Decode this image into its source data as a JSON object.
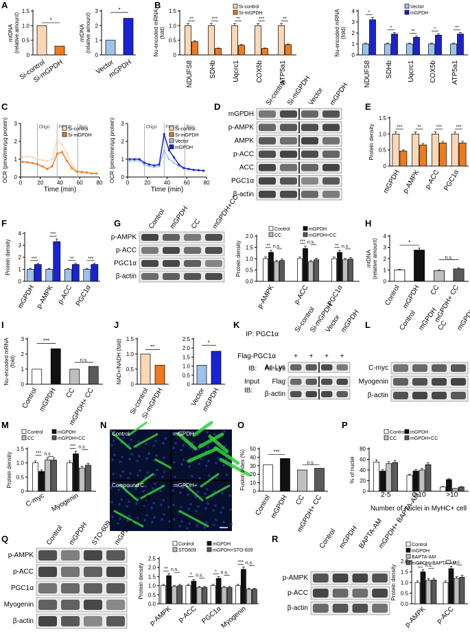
{
  "panels": {
    "A": {
      "letter": "A",
      "left": {
        "ylabel": "mtDNA",
        "ylabel2": "(relative amount)",
        "ticks": [
          "0",
          "0.5",
          "1.0",
          "1.5"
        ],
        "cats": [
          "Si-control",
          "Si-mGPDH"
        ],
        "values": [
          1.0,
          0.3
        ],
        "sig": "*"
      },
      "right": {
        "ylabel": "mtDNA",
        "ylabel2": "(relative amount)",
        "ticks": [
          "0",
          "1",
          "2",
          "3"
        ],
        "cats": [
          "Vector",
          "mGPDH"
        ],
        "values": [
          1.0,
          2.5
        ],
        "sig": "*"
      }
    },
    "B": {
      "letter": "B",
      "left": {
        "ylabel": "Nu-encoded mRNA",
        "ylabel2": "(fold)",
        "ticks": [
          "0",
          "0.5",
          "1.0",
          "1.5"
        ],
        "legend": [
          "Si-control",
          "Si-mGPDH"
        ],
        "cats": [
          "NDUFS8",
          "SDHb",
          "Uqcrc1",
          "COX5b",
          "ATP5a1"
        ],
        "series": [
          [
            1.0,
            1.0,
            1.0,
            1.0,
            1.0
          ],
          [
            0.45,
            0.22,
            0.33,
            0.22,
            0.35
          ]
        ],
        "sig": [
          "**",
          "***",
          "**",
          "***",
          "**"
        ]
      },
      "right": {
        "ylabel": "Nu-encoded mRNA",
        "ylabel2": "(fold)",
        "ticks": [
          "0",
          "1",
          "2",
          "3",
          "4"
        ],
        "legend": [
          "Vector",
          "mGPDH"
        ],
        "cats": [
          "NDUFS8",
          "SDHb",
          "Uqcrc1",
          "COX5b",
          "ATP5a1"
        ],
        "series": [
          [
            1.0,
            1.0,
            1.0,
            1.0,
            1.0
          ],
          [
            3.2,
            1.9,
            1.6,
            1.8,
            1.9
          ]
        ],
        "sig": [
          "*",
          "*",
          "**",
          "*",
          "**"
        ]
      }
    },
    "C": {
      "letter": "C",
      "ylabel": "OCR (pmol/min/μg protein)",
      "xlabel": "Time (min)",
      "xticks": [
        "0",
        "20",
        "40",
        "60",
        "80"
      ],
      "yticks": [
        "0",
        "1",
        "2",
        "3"
      ],
      "markers": [
        "Oligo",
        "FCCP",
        "Rot"
      ],
      "left": {
        "legend": [
          "Si-control",
          "Si-mGPDH"
        ]
      },
      "right": {
        "legend": [
          "Si-control",
          "Si-mGPDH",
          "Vector",
          "mGPDH"
        ]
      }
    },
    "D": {
      "letter": "D",
      "lanes": [
        "Si-control",
        "Si-mGPDH",
        "Vector",
        "mGPDH"
      ],
      "rows": [
        "mGPDH",
        "p-AMPK",
        "AMPK",
        "p-ACC",
        "ACC",
        "PGC1α",
        "β-actin"
      ]
    },
    "E": {
      "letter": "E",
      "ylabel": "Protein density",
      "ticks": [
        "0",
        "0.5",
        "1.0",
        "1.5"
      ],
      "cats": [
        "mGPDH",
        "p-AMPK",
        "p-ACC",
        "PGC1α"
      ],
      "series": [
        [
          1.0,
          1.0,
          1.0,
          1.0
        ],
        [
          0.47,
          0.66,
          0.72,
          0.72
        ]
      ],
      "sig": [
        "***",
        "**",
        "***",
        "***"
      ]
    },
    "F": {
      "letter": "F",
      "ylabel": "Protein density",
      "ticks": [
        "0",
        "1",
        "2",
        "3",
        "4"
      ],
      "cats": [
        "mGPDH",
        "p-AMPK",
        "p-ACC",
        "PGC1α"
      ],
      "series": [
        [
          1.0,
          1.0,
          1.0,
          1.0
        ],
        [
          1.4,
          3.3,
          1.4,
          1.4
        ]
      ],
      "sig": [
        "***",
        "***",
        "**",
        "***"
      ]
    },
    "G": {
      "letter": "G",
      "lanes": [
        "Control",
        "mGPDH",
        "CC",
        "mGPDH+CC"
      ],
      "rows": [
        "p-AMPK",
        "p-ACC",
        "PGC1α",
        "β-actin"
      ],
      "chart": {
        "ylabel": "Protein density",
        "ticks": [
          "0.0",
          "0.5",
          "1.0",
          "1.5",
          "2.0"
        ],
        "legend": [
          "Control",
          "mGPDH",
          "CC",
          "mGPDH+CC"
        ],
        "cats": [
          "p-AMPK",
          "p-ACC",
          "PGC1α"
        ],
        "series": [
          [
            1.0,
            1.0,
            1.0
          ],
          [
            1.28,
            1.45,
            1.28
          ],
          [
            0.86,
            0.86,
            0.95
          ],
          [
            0.92,
            0.95,
            0.98
          ]
        ],
        "sig": [
          "**",
          "***",
          "**"
        ],
        "ns": "n.s."
      }
    },
    "H": {
      "letter": "H",
      "ylabel": "mtDNA",
      "ylabel2": "(relative amount)",
      "ticks": [
        "0",
        "1",
        "2",
        "3",
        "4"
      ],
      "cats": [
        "Control",
        "mGPDH",
        "CC",
        "mGPDH+ CC"
      ],
      "values": [
        1.0,
        2.75,
        0.95,
        1.1
      ],
      "sig": "*",
      "ns": "n.s."
    },
    "I": {
      "letter": "I",
      "ylabel": "Nu-encoded mRNA",
      "ylabel2": "(fold)",
      "ticks": [
        "0",
        "1",
        "2",
        "3"
      ],
      "cats": [
        "Control",
        "mGPDH",
        "CC",
        "mGPDH+ CC"
      ],
      "values": [
        1.0,
        2.35,
        1.0,
        1.18
      ],
      "sig": "***",
      "ns": "n.s."
    },
    "J": {
      "letter": "J",
      "ylabel": "NAD+/NADH (fold)",
      "ticksL": [
        "0",
        "0.5",
        "1.0",
        "1.5"
      ],
      "ticksR": [
        "0",
        "0.5",
        "1.0",
        "1.5",
        "2.0",
        "2.5"
      ],
      "catsL": [
        "Si-control",
        "Si-mGPDH"
      ],
      "valuesL": [
        1.0,
        0.63
      ],
      "sigL": "**",
      "catsR": [
        "Vector",
        "mGPDH"
      ],
      "valuesR": [
        1.05,
        1.82
      ],
      "sigR": "*"
    },
    "K": {
      "letter": "K",
      "ip": "IP: PGC1α",
      "lanes": [
        "Si-control",
        "Si-mGPDH",
        "Vector",
        "mGPDH"
      ],
      "flag_label": "Flag-PGC1α",
      "plus": "+",
      "ib1": "IB:",
      "ib_row": "Ac-Lys",
      "input": "Input",
      "ib2": "IB:",
      "rows2": [
        "Flag",
        "β-actin"
      ]
    },
    "L": {
      "letter": "L",
      "lanes": [
        "Control",
        "mGPDH",
        "CC",
        "mGPDH+CC"
      ],
      "rows": [
        "C-myc",
        "Myogenin",
        "β-actin"
      ]
    },
    "M": {
      "letter": "M",
      "ylabel": "Protein density",
      "ticks": [
        "0",
        "0.5",
        "1.0",
        "1.5"
      ],
      "legend": [
        "Control",
        "mGPDH",
        "CC",
        "mGPDH+CC"
      ],
      "cats": [
        "C-myc",
        "Myogenin"
      ],
      "series": [
        [
          1.0,
          1.0
        ],
        [
          0.7,
          1.32
        ],
        [
          1.1,
          0.82
        ],
        [
          1.1,
          0.92
        ]
      ],
      "sig": [
        "***",
        "***"
      ],
      "ns": "n.s."
    },
    "N": {
      "letter": "N",
      "labels": [
        "Control",
        "mGPDH",
        "Compound C",
        "mGPDH+ Compound C"
      ]
    },
    "O": {
      "letter": "O",
      "ylabel": "Fusion index (%)",
      "ticks": [
        "0",
        "10",
        "20",
        "30",
        "40",
        "50"
      ],
      "cats": [
        "Control",
        "mGPDH",
        "CC",
        "mGPDH+ CC"
      ],
      "values": [
        31,
        38.5,
        25,
        27
      ],
      "sig": "***",
      "ns": "n.s."
    },
    "P": {
      "letter": "P",
      "ylabel": "% of nuclei",
      "xlabel": "Number of nuclei in MyHC+ cell",
      "ticks": [
        "0",
        "20",
        "40",
        "60",
        "80"
      ],
      "legend": [
        "Control",
        "mGPDH",
        "CC",
        "mGPDH+CC"
      ],
      "cats": [
        "2-5",
        "6-10",
        ">10"
      ],
      "series": [
        [
          55,
          30,
          8
        ],
        [
          38,
          38,
          22
        ],
        [
          52,
          40,
          5
        ],
        [
          54,
          50,
          8
        ]
      ],
      "sig": [
        "**",
        "n.s.",
        "**"
      ],
      "ns": "n.s."
    },
    "Q": {
      "letter": "Q",
      "lanes": [
        "Control",
        "mGPDH",
        "STO-609",
        "mGPDH+ STO-609"
      ],
      "rows": [
        "p-AMPK",
        "p-ACC",
        "PGC1α",
        "Myogenin",
        "β-actin"
      ],
      "chart": {
        "ylabel": "Protein density",
        "ticks": [
          "0.0",
          "0.5",
          "1.0",
          "1.5",
          "2.0",
          "2.5"
        ],
        "legend": [
          "Control",
          "mGPDH",
          "STO609",
          "mGPDH+STO-609"
        ],
        "cats": [
          "p-AMPK",
          "p-ACC",
          "PGC1α",
          "Myogenin"
        ],
        "series": [
          [
            1.0,
            1.0,
            1.0,
            1.0
          ],
          [
            1.55,
            1.25,
            1.4,
            1.9
          ],
          [
            0.95,
            0.9,
            0.9,
            0.8
          ],
          [
            1.0,
            0.9,
            0.9,
            0.8
          ]
        ],
        "sig": [
          "**",
          "*",
          "*",
          "***"
        ],
        "ns": "n.s."
      }
    },
    "R": {
      "letter": "R",
      "lanes": [
        "Control",
        "mGPDH",
        "BAPTA-AM",
        "mGPDH+ BAPTA-AM"
      ],
      "rows": [
        "p-AMPK",
        "p-ACC",
        "β-actin"
      ],
      "chart": {
        "ylabel": "Protein density",
        "ticks": [
          "0.0",
          "0.5",
          "1.0",
          "1.5",
          "2.0"
        ],
        "legend": [
          "Control",
          "mGPDH",
          "BAPTA-AM",
          "mGPDH+BAPTA-AM"
        ],
        "cats": [
          "p-AMPK",
          "p-ACC"
        ],
        "series": [
          [
            1.0,
            1.0
          ],
          [
            1.5,
            1.65
          ],
          [
            1.1,
            1.2
          ],
          [
            1.12,
            1.25
          ]
        ],
        "sig": [
          "***",
          "***"
        ],
        "ns": "n.s."
      }
    }
  },
  "colors": {
    "peach": "#fbd7b5",
    "orange": "#f07a1c",
    "lightblue": "#9cc3ec",
    "blue": "#1a22d6",
    "black": "#111111",
    "white": "#ffffff",
    "gray": "#bfbfbf",
    "darkgray": "#5a5a5a",
    "green": "#2fd23a",
    "nucleus": "#1b2f8c"
  }
}
